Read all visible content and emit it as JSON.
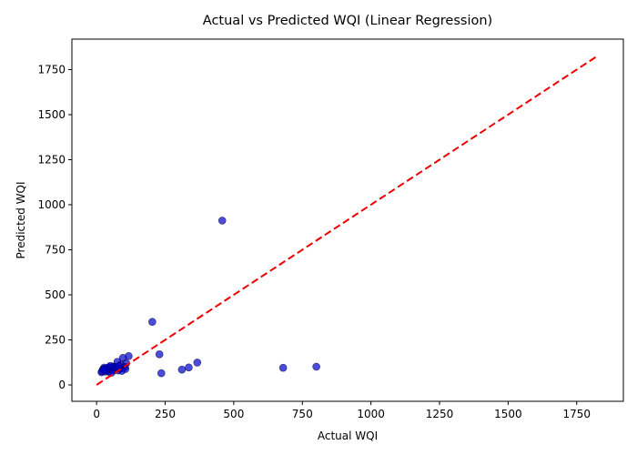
{
  "chart_data": {
    "type": "scatter",
    "title": "Actual vs Predicted WQI (Linear Regression)",
    "xlabel": "Actual WQI",
    "ylabel": "Predicted WQI",
    "xlim": [
      -90,
      1920
    ],
    "ylim": [
      -91,
      1919
    ],
    "xticks": [
      0,
      250,
      500,
      750,
      1000,
      1250,
      1500,
      1750
    ],
    "yticks": [
      0,
      250,
      500,
      750,
      1000,
      1250,
      1500,
      1750
    ],
    "grid": false,
    "legend": "none",
    "points_color": "#0000cc",
    "reference_line": {
      "style": "dashed",
      "color": "#ee0000",
      "x": [
        0,
        1827
      ],
      "y": [
        0,
        1827
      ]
    },
    "points": [
      {
        "x": 458,
        "y": 912
      },
      {
        "x": 203,
        "y": 350
      },
      {
        "x": 229,
        "y": 170
      },
      {
        "x": 367,
        "y": 124
      },
      {
        "x": 336,
        "y": 97
      },
      {
        "x": 311,
        "y": 85
      },
      {
        "x": 236,
        "y": 65
      },
      {
        "x": 680,
        "y": 95
      },
      {
        "x": 801,
        "y": 101
      },
      {
        "x": 117,
        "y": 160
      },
      {
        "x": 96,
        "y": 150
      },
      {
        "x": 76,
        "y": 128
      },
      {
        "x": 108,
        "y": 120
      },
      {
        "x": 88,
        "y": 112
      },
      {
        "x": 103,
        "y": 100
      },
      {
        "x": 60,
        "y": 102
      },
      {
        "x": 45,
        "y": 98
      },
      {
        "x": 52,
        "y": 95
      },
      {
        "x": 70,
        "y": 92
      },
      {
        "x": 85,
        "y": 90
      },
      {
        "x": 105,
        "y": 88
      },
      {
        "x": 30,
        "y": 90
      },
      {
        "x": 24,
        "y": 88
      },
      {
        "x": 38,
        "y": 86
      },
      {
        "x": 57,
        "y": 84
      },
      {
        "x": 64,
        "y": 82
      },
      {
        "x": 78,
        "y": 80
      },
      {
        "x": 92,
        "y": 78
      },
      {
        "x": 20,
        "y": 76
      },
      {
        "x": 33,
        "y": 74
      },
      {
        "x": 46,
        "y": 72
      },
      {
        "x": 18,
        "y": 70
      },
      {
        "x": 55,
        "y": 68
      },
      {
        "x": 41,
        "y": 94
      },
      {
        "x": 28,
        "y": 96
      },
      {
        "x": 67,
        "y": 100
      },
      {
        "x": 82,
        "y": 104
      },
      {
        "x": 50,
        "y": 106
      },
      {
        "x": 36,
        "y": 80
      },
      {
        "x": 26,
        "y": 84
      }
    ]
  }
}
